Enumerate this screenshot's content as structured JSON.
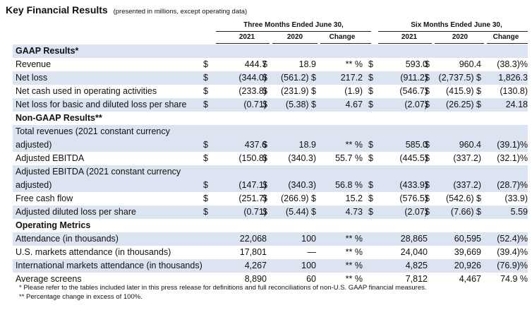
{
  "title": "Key Financial Results",
  "subtitle": "(presented in millions, except operating data)",
  "groups": [
    "Three Months Ended June 30,",
    "Six Months Ended June 30,"
  ],
  "columns": [
    "2021",
    "2020",
    "Change",
    "2021",
    "2020",
    "Change"
  ],
  "rows": [
    {
      "label": "GAAP Results*",
      "header": true,
      "band": true
    },
    {
      "label": "Revenue",
      "cells": [
        "$",
        "444.7",
        "$",
        "18.9",
        "** %",
        "$",
        "593.0",
        "$",
        "960.4",
        "(38.3)%"
      ]
    },
    {
      "label": "Net loss",
      "band": true,
      "cells": [
        "$",
        "(344.0)",
        "$",
        "(561.2) $",
        "217.2",
        "$",
        "(911.2)",
        "$",
        "(2,737.5) $",
        "1,826.3"
      ]
    },
    {
      "label": "Net cash used in operating activities",
      "cells": [
        "$",
        "(233.8)",
        "$",
        "(231.9) $",
        "(1.9)",
        "$",
        "(546.7)",
        "$",
        "(415.9) $",
        "(130.8)"
      ]
    },
    {
      "label": "Net loss for basic and diluted loss per share",
      "band": true,
      "cells": [
        "$",
        "(0.71)",
        "$",
        "(5.38) $",
        "4.67",
        "$",
        "(2.07)",
        "$",
        "(26.25) $",
        "24.18"
      ]
    },
    {
      "label": "Non-GAAP Results**",
      "header": true
    },
    {
      "label": "Total revenues (2021 constant currency",
      "band": true,
      "cells": [
        "",
        "",
        "",
        "",
        "",
        "",
        "",
        "",
        "",
        ""
      ]
    },
    {
      "label": "adjusted)",
      "band": true,
      "cells": [
        "$",
        "437.6",
        "$",
        "18.9",
        "** %",
        "$",
        "585.0",
        "$",
        "960.4",
        "(39.1)%"
      ]
    },
    {
      "label": "Adjusted EBITDA",
      "cells": [
        "$",
        "(150.8)",
        "$",
        "(340.3)",
        "55.7 %",
        "$",
        "(445.5)",
        "$",
        "(337.2)",
        "(32.1)%"
      ]
    },
    {
      "label": "Adjusted EBITDA (2021 constant currency",
      "band": true,
      "cells": [
        "",
        "",
        "",
        "",
        "",
        "",
        "",
        "",
        "",
        ""
      ]
    },
    {
      "label": "adjusted)",
      "band": true,
      "cells": [
        "$",
        "(147.1)",
        "$",
        "(340.3)",
        "56.8 %",
        "$",
        "(433.9)",
        "$",
        "(337.2)",
        "(28.7)%"
      ]
    },
    {
      "label": "Free cash flow",
      "cells": [
        "$",
        "(251.7)",
        "$",
        "(266.9) $",
        "15.2",
        "$",
        "(576.5)",
        "$",
        "(542.6) $",
        "(33.9)"
      ]
    },
    {
      "label": "Adjusted diluted loss per share",
      "band": true,
      "cells": [
        "$",
        "(0.71)",
        "$",
        "(5.44) $",
        "4.73",
        "$",
        "(2.07)",
        "$",
        "(7.66) $",
        "5.59"
      ]
    },
    {
      "label": "Operating Metrics",
      "header": true
    },
    {
      "label": "Attendance (in thousands)",
      "band": true,
      "cells": [
        "",
        "22,068",
        "",
        "100",
        "** %",
        "",
        "28,865",
        "",
        "60,595",
        "(52.4)%"
      ]
    },
    {
      "label": "U.S. markets attendance (in thousands)",
      "cells": [
        "",
        "17,801",
        "",
        "—",
        "** %",
        "",
        "24,040",
        "",
        "39,669",
        "(39.4)%"
      ]
    },
    {
      "label": "International markets attendance (in thousands)",
      "band": true,
      "cells": [
        "",
        "4,267",
        "",
        "100",
        "** %",
        "",
        "4,825",
        "",
        "20,926",
        "(76.9)%"
      ]
    },
    {
      "label": "Average screens",
      "cells": [
        "",
        "8,890",
        "",
        "60",
        "** %",
        "",
        "7,812",
        "",
        "4,467",
        "74.9 %"
      ]
    }
  ],
  "footnotes": [
    "* Please refer to the tables included later in this press release for definitions and full reconciliations of non-U.S. GAAP financial measures.",
    "** Percentage change in excess of 100%."
  ]
}
